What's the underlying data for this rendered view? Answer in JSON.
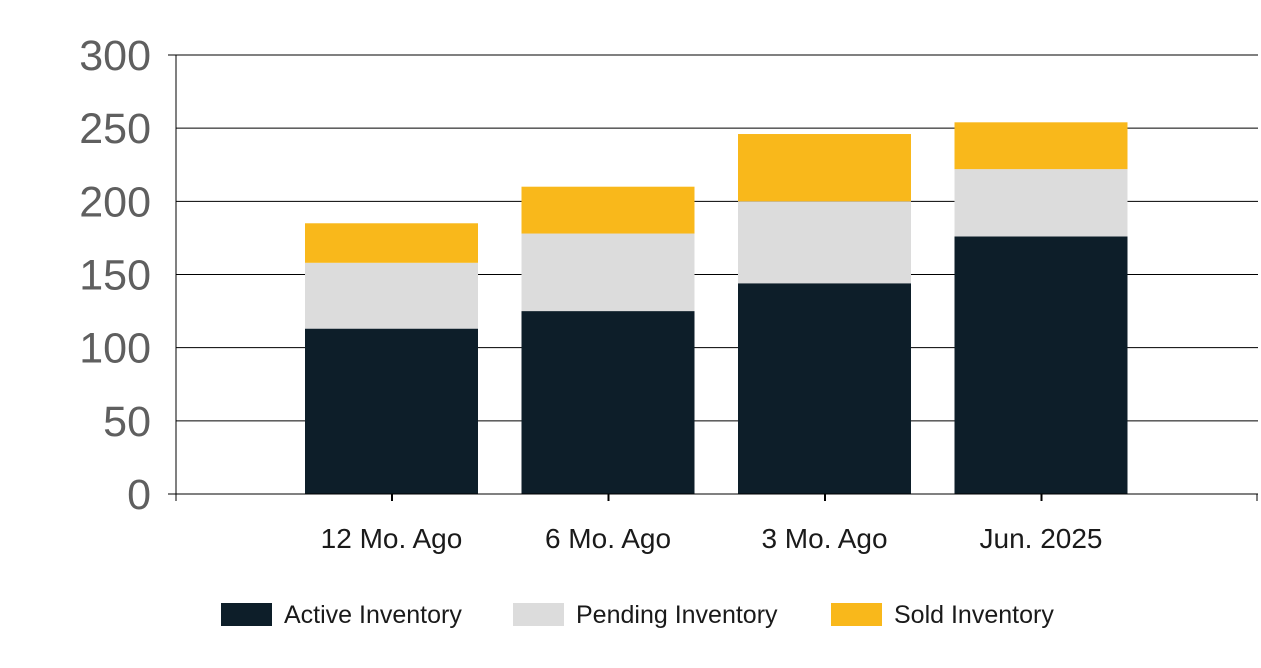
{
  "chart_data": {
    "type": "bar",
    "stacked": true,
    "title": "",
    "xlabel": "",
    "ylabel": "",
    "categories": [
      "12 Mo. Ago",
      "6 Mo. Ago",
      "3 Mo. Ago",
      "Jun. 2025"
    ],
    "series": [
      {
        "name": "Active Inventory",
        "color": "#0d1e29",
        "values": [
          113,
          125,
          144,
          176
        ]
      },
      {
        "name": "Pending Inventory",
        "color": "#dcdcdc",
        "values": [
          45,
          53,
          56,
          46
        ]
      },
      {
        "name": "Sold Inventory",
        "color": "#f9b81b",
        "values": [
          27,
          32,
          46,
          32
        ]
      }
    ],
    "ylim": [
      0,
      300
    ],
    "yticks": [
      0,
      50,
      100,
      150,
      200,
      250,
      300
    ],
    "grid": true,
    "legend_position": "bottom"
  }
}
